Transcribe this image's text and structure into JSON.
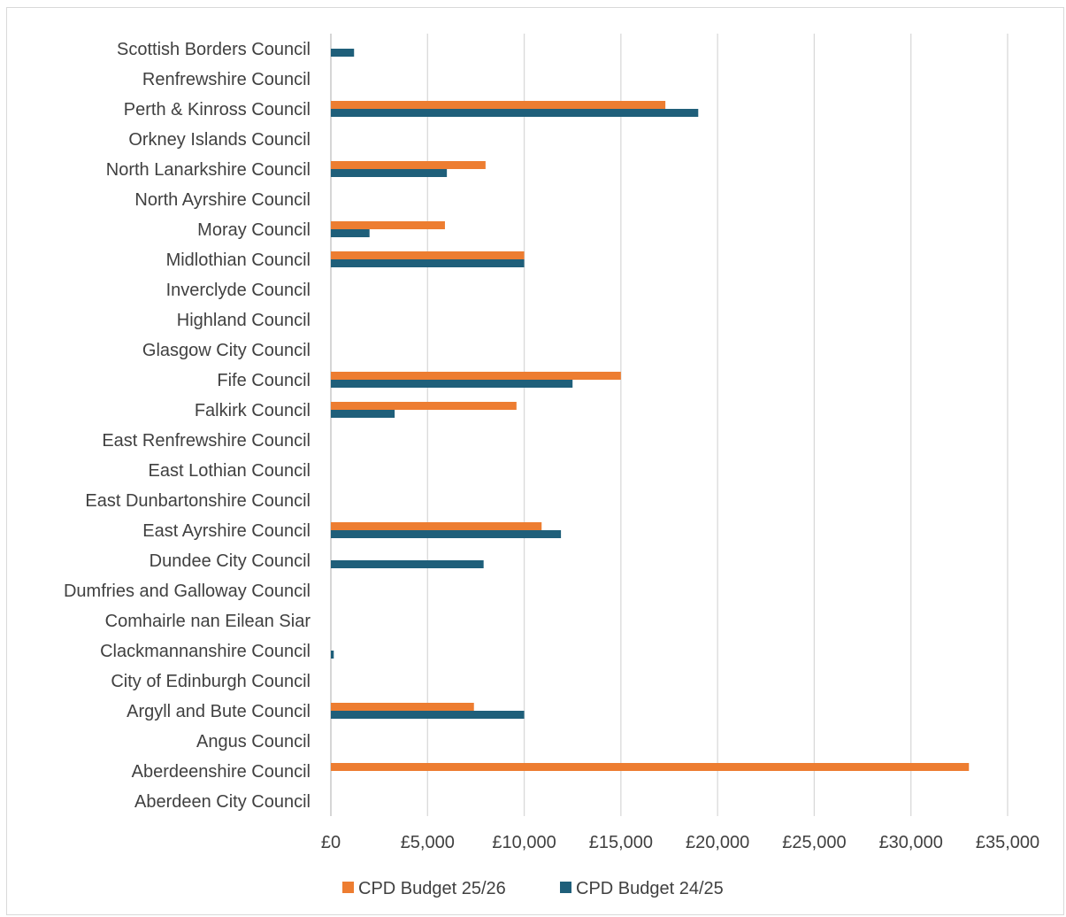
{
  "chart_data": {
    "type": "bar",
    "orientation": "horizontal",
    "title": "",
    "xlabel": "",
    "ylabel": "",
    "xlim": [
      0,
      35000
    ],
    "x_ticks": [
      0,
      5000,
      10000,
      15000,
      20000,
      25000,
      30000,
      35000
    ],
    "x_tick_labels": [
      "£0",
      "£5,000",
      "£10,000",
      "£15,000",
      "£20,000",
      "£25,000",
      "£30,000",
      "£35,000"
    ],
    "grid": "vertical",
    "legend_position": "bottom",
    "categories": [
      "Scottish Borders Council",
      "Renfrewshire Council",
      "Perth & Kinross Council",
      "Orkney Islands Council",
      "North Lanarkshire Council",
      "North Ayrshire Council",
      "Moray Council",
      "Midlothian Council",
      "Inverclyde Council",
      "Highland Council",
      "Glasgow City Council",
      "Fife Council",
      "Falkirk Council",
      "East Renfrewshire Council",
      "East Lothian Council",
      "East Dunbartonshire Council",
      "East Ayrshire Council",
      "Dundee City Council",
      "Dumfries and Galloway Council",
      "Comhairle nan Eilean Siar",
      "Clackmannanshire Council",
      "City of Edinburgh Council",
      "Argyll and Bute Council",
      "Angus Council",
      "Aberdeenshire Council",
      "Aberdeen City Council"
    ],
    "series": [
      {
        "name": "CPD Budget 25/26",
        "color": "#ed7d31",
        "values": [
          0,
          0,
          17300,
          0,
          8000,
          0,
          5900,
          10000,
          0,
          0,
          0,
          15000,
          9600,
          0,
          0,
          0,
          10900,
          0,
          0,
          0,
          0,
          0,
          7400,
          0,
          33000,
          0
        ]
      },
      {
        "name": "CPD Budget 24/25",
        "color": "#1f5f7a",
        "values": [
          1200,
          0,
          19000,
          0,
          6000,
          0,
          2000,
          10000,
          0,
          0,
          0,
          12500,
          3300,
          0,
          0,
          0,
          11900,
          7900,
          0,
          0,
          150,
          0,
          10000,
          0,
          0,
          0
        ]
      }
    ]
  }
}
